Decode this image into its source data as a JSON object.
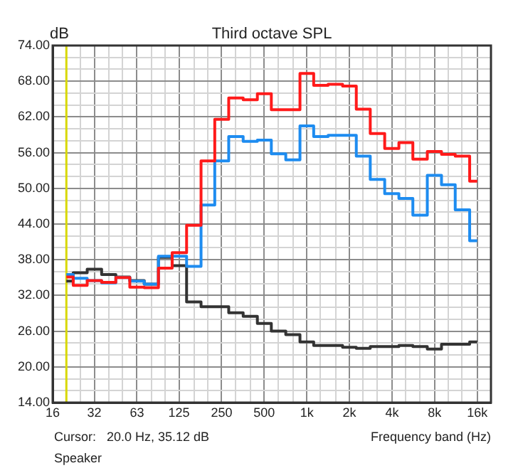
{
  "chart_data": {
    "type": "step",
    "title": "Third octave SPL",
    "xlabel": "Frequency band (Hz)",
    "ylabel": "dB",
    "log": "x",
    "grid": true,
    "marker": "none",
    "annotations": [
      "Cursor:   20.0 Hz, 35.12 dB",
      "Speaker"
    ],
    "x": [
      20,
      25,
      31.5,
      40,
      50,
      63,
      80,
      100,
      125,
      160,
      200,
      250,
      315,
      400,
      500,
      630,
      800,
      1000,
      1250,
      1600,
      2000,
      2500,
      3150,
      4000,
      5000,
      6300,
      8000,
      10000,
      12500,
      16000
    ],
    "series": [
      {
        "color": "#ff1a1a",
        "values": [
          35.1,
          33.7,
          34.5,
          34.2,
          35.0,
          33.4,
          33.3,
          36.6,
          39.2,
          43.8,
          54.6,
          61.6,
          65.2,
          64.9,
          65.9,
          63.2,
          63.2,
          69.3,
          67.3,
          67.5,
          67.2,
          63.3,
          59.2,
          56.7,
          57.7,
          54.9,
          56.2,
          55.7,
          55.4,
          51.2
        ]
      },
      {
        "color": "#1e8cf0",
        "values": [
          35.5,
          34.9,
          34.5,
          34.1,
          35.0,
          34.4,
          33.9,
          38.6,
          38.6,
          36.9,
          47.2,
          54.6,
          58.7,
          57.9,
          58.1,
          55.8,
          54.8,
          60.5,
          58.7,
          58.9,
          58.9,
          55.4,
          51.5,
          49.1,
          48.3,
          45.5,
          52.2,
          50.6,
          46.4,
          41.2
        ]
      },
      {
        "color": "#333333",
        "values": [
          34.4,
          35.8,
          36.4,
          35.5,
          35.1,
          34.5,
          33.9,
          38.4,
          37.0,
          30.9,
          30.1,
          30.1,
          29.1,
          28.5,
          27.3,
          26.0,
          25.4,
          24.2,
          23.6,
          23.6,
          23.3,
          23.1,
          23.4,
          23.4,
          23.6,
          23.4,
          23.0,
          23.8,
          23.8,
          24.2
        ]
      }
    ],
    "xlim": [
      16,
      20000
    ],
    "ylim": [
      14,
      74
    ],
    "xticks": [
      16,
      {
        "value": 20,
        "label": null
      },
      {
        "value": 25,
        "label": null
      },
      {
        "value": 31.5,
        "label": "32"
      },
      {
        "value": 40,
        "label": null
      },
      {
        "value": 50,
        "label": null
      },
      63,
      {
        "value": 80,
        "label": null
      },
      {
        "value": 100,
        "label": null
      },
      125,
      {
        "value": 160,
        "label": null
      },
      {
        "value": 200,
        "label": null
      },
      250,
      {
        "value": 315,
        "label": null
      },
      {
        "value": 400,
        "label": null
      },
      500,
      {
        "value": 630,
        "label": null
      },
      {
        "value": 800,
        "label": null
      },
      {
        "value": 1000,
        "label": "1k"
      },
      {
        "value": 1250,
        "label": null
      },
      {
        "value": 1600,
        "label": null
      },
      {
        "value": 2000,
        "label": "2k"
      },
      {
        "value": 2500,
        "label": null
      },
      {
        "value": 3150,
        "label": null
      },
      {
        "value": 4000,
        "label": "4k"
      },
      {
        "value": 5000,
        "label": null
      },
      {
        "value": 6300,
        "label": null
      },
      {
        "value": 8000,
        "label": "8k"
      },
      {
        "value": 10000,
        "label": null
      },
      {
        "value": 12500,
        "label": null
      },
      {
        "value": 16000,
        "label": "16k"
      }
    ],
    "yticks": [
      {
        "value": 14,
        "label": "14.00"
      },
      {
        "value": 16,
        "label": null
      },
      {
        "value": 18,
        "label": null
      },
      {
        "value": 20,
        "label": "20.00"
      },
      {
        "value": 22,
        "label": null
      },
      {
        "value": 24,
        "label": null
      },
      {
        "value": 26,
        "label": "26.00"
      },
      {
        "value": 28,
        "label": null
      },
      {
        "value": 30,
        "label": null
      },
      {
        "value": 32,
        "label": "32.00"
      },
      {
        "value": 34,
        "label": null
      },
      {
        "value": 36,
        "label": null
      },
      {
        "value": 38,
        "label": "38.00"
      },
      {
        "value": 40,
        "label": null
      },
      {
        "value": 42,
        "label": null
      },
      {
        "value": 44,
        "label": "44.00"
      },
      {
        "value": 46,
        "label": null
      },
      {
        "value": 48,
        "label": null
      },
      {
        "value": 50,
        "label": "50.00"
      },
      {
        "value": 52,
        "label": null
      },
      {
        "value": 54,
        "label": null
      },
      {
        "value": 56,
        "label": "56.00"
      },
      {
        "value": 58,
        "label": null
      },
      {
        "value": 60,
        "label": null
      },
      {
        "value": 62,
        "label": "62.00"
      },
      {
        "value": 64,
        "label": null
      },
      {
        "value": 66,
        "label": null
      },
      {
        "value": 68,
        "label": "68.00"
      },
      {
        "value": 70,
        "label": null
      },
      {
        "value": 72,
        "label": null
      },
      {
        "value": 74,
        "label": "74.00"
      }
    ],
    "ref_lines": [
      {
        "axis": "x",
        "value": 20,
        "color": "#d8d800"
      }
    ]
  }
}
